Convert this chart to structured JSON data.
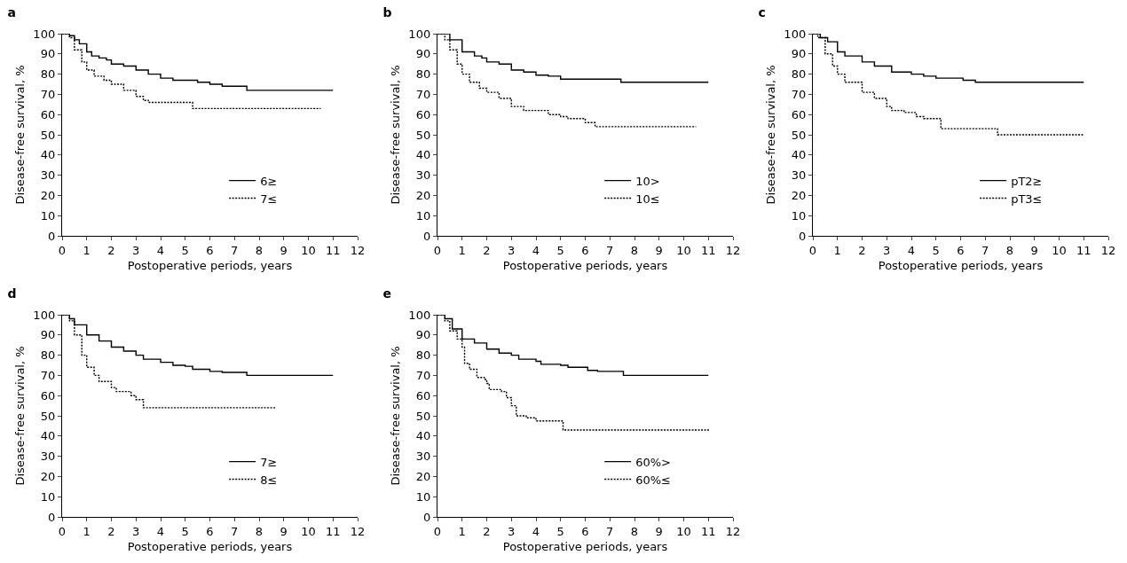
{
  "chart_data": [
    {
      "type": "step",
      "title": "a",
      "xlabel": "Postoperative periods, years",
      "ylabel": "Disease-free survival, %",
      "xlim": [
        0,
        12
      ],
      "ylim": [
        0,
        100
      ],
      "xticks": [
        0,
        1,
        2,
        3,
        4,
        5,
        6,
        7,
        8,
        9,
        10,
        11,
        12
      ],
      "yticks": [
        0,
        10,
        20,
        30,
        40,
        50,
        60,
        70,
        80,
        90,
        100
      ],
      "grid": false,
      "legend": "bottom right",
      "series": [
        {
          "name": "6≥",
          "color": "#000000",
          "line_style": "solid",
          "x": [
            0,
            0.3,
            0.5,
            0.7,
            1,
            1.2,
            1.5,
            1.8,
            2,
            2.5,
            3,
            3.5,
            4,
            4.5,
            5.5,
            6,
            6.5,
            7.5,
            11
          ],
          "values": [
            100,
            99,
            97,
            95,
            91,
            89,
            88,
            87,
            85,
            84,
            82,
            80,
            78,
            77,
            76,
            75,
            74,
            72,
            72
          ]
        },
        {
          "name": "7≤",
          "color": "#000000",
          "line_style": "dotted",
          "x": [
            0,
            0.3,
            0.5,
            0.8,
            1,
            1.3,
            1.7,
            2,
            2.5,
            3,
            3.3,
            3.5,
            5.3,
            10.5
          ],
          "values": [
            100,
            98,
            92,
            86,
            82,
            79,
            77,
            75,
            72,
            69,
            67,
            66,
            63,
            63
          ]
        }
      ]
    },
    {
      "type": "step",
      "title": "b",
      "xlabel": "Postoperative periods, years",
      "ylabel": "Disease-free survival, %",
      "xlim": [
        0,
        12
      ],
      "ylim": [
        0,
        100
      ],
      "xticks": [
        0,
        1,
        2,
        3,
        4,
        5,
        6,
        7,
        8,
        9,
        10,
        11,
        12
      ],
      "yticks": [
        0,
        10,
        20,
        30,
        40,
        50,
        60,
        70,
        80,
        90,
        100
      ],
      "grid": false,
      "legend": "bottom right",
      "series": [
        {
          "name": "10>",
          "color": "#000000",
          "line_style": "solid",
          "x": [
            0,
            0.5,
            1,
            1.5,
            1.8,
            2,
            2.5,
            3,
            3.5,
            4,
            4.5,
            5,
            7.45,
            11
          ],
          "values": [
            100,
            97,
            91,
            89,
            88,
            86,
            85,
            82,
            81,
            79.5,
            79,
            77.5,
            76,
            76
          ]
        },
        {
          "name": "10≤",
          "color": "#000000",
          "line_style": "dotted",
          "x": [
            0,
            0.3,
            0.5,
            0.8,
            1,
            1.3,
            1.7,
            2,
            2.5,
            3,
            3.5,
            4.5,
            5,
            5.3,
            6,
            6.4,
            10.5
          ],
          "values": [
            100,
            97,
            92,
            85,
            80,
            76,
            73,
            71,
            68,
            64,
            62,
            60,
            59,
            58,
            56,
            54,
            54
          ]
        }
      ]
    },
    {
      "type": "step",
      "title": "c",
      "xlabel": "Postoperative periods, years",
      "ylabel": "Disease-free survival, %",
      "xlim": [
        0,
        12
      ],
      "ylim": [
        0,
        100
      ],
      "xticks": [
        0,
        1,
        2,
        3,
        4,
        5,
        6,
        7,
        8,
        9,
        10,
        11,
        12
      ],
      "yticks": [
        0,
        10,
        20,
        30,
        40,
        50,
        60,
        70,
        80,
        90,
        100
      ],
      "grid": false,
      "legend": "bottom right",
      "series": [
        {
          "name": "pT2≥",
          "color": "#000000",
          "line_style": "solid",
          "x": [
            0,
            0.3,
            0.6,
            1,
            1.3,
            2,
            2.5,
            3.2,
            4,
            4.5,
            5,
            6.1,
            6.6,
            11
          ],
          "values": [
            100,
            98,
            96,
            91,
            89,
            86,
            84,
            81,
            80,
            79,
            78,
            77,
            76,
            76
          ]
        },
        {
          "name": "pT3≤",
          "color": "#000000",
          "line_style": "dotted",
          "x": [
            0,
            0.2,
            0.5,
            0.8,
            1,
            1.3,
            2,
            2.5,
            3,
            3.2,
            3.7,
            4.2,
            4.5,
            5.2,
            7.5,
            11
          ],
          "values": [
            100,
            98,
            90,
            84,
            80,
            76,
            71,
            68,
            64,
            62,
            61,
            59,
            58,
            53,
            50,
            50
          ]
        }
      ]
    },
    {
      "type": "step",
      "title": "d",
      "xlabel": "Postoperative periods, years",
      "ylabel": "Disease-free survival, %",
      "xlim": [
        0,
        12
      ],
      "ylim": [
        0,
        100
      ],
      "xticks": [
        0,
        1,
        2,
        3,
        4,
        5,
        6,
        7,
        8,
        9,
        10,
        11,
        12
      ],
      "yticks": [
        0,
        10,
        20,
        30,
        40,
        50,
        60,
        70,
        80,
        90,
        100
      ],
      "grid": false,
      "legend": "bottom right",
      "series": [
        {
          "name": "7≥",
          "color": "#000000",
          "line_style": "solid",
          "x": [
            0,
            0.3,
            0.5,
            1,
            1.5,
            2,
            2.5,
            3,
            3.3,
            4,
            4.5,
            5,
            5.3,
            6,
            6.5,
            7.5,
            11
          ],
          "values": [
            100,
            98,
            95,
            90,
            87,
            84,
            82,
            80,
            78,
            76.5,
            75,
            74.5,
            73,
            72,
            71.5,
            70,
            70
          ]
        },
        {
          "name": "8≤",
          "color": "#000000",
          "line_style": "dotted",
          "x": [
            0,
            0.3,
            0.5,
            0.8,
            1,
            1.3,
            1.5,
            2,
            2.2,
            2.8,
            3,
            3.3,
            8.7
          ],
          "values": [
            100,
            97,
            90,
            80,
            74,
            70,
            67,
            64,
            62,
            60,
            58,
            54,
            54
          ]
        }
      ]
    },
    {
      "type": "step",
      "title": "e",
      "xlabel": "Postoperative periods, years",
      "ylabel": "Disease-free survival, %",
      "xlim": [
        0,
        12
      ],
      "ylim": [
        0,
        100
      ],
      "xticks": [
        0,
        1,
        2,
        3,
        4,
        5,
        6,
        7,
        8,
        9,
        10,
        11,
        12
      ],
      "yticks": [
        0,
        10,
        20,
        30,
        40,
        50,
        60,
        70,
        80,
        90,
        100
      ],
      "grid": false,
      "legend": "bottom right",
      "series": [
        {
          "name": "60%>",
          "color": "#000000",
          "line_style": "solid",
          "x": [
            0,
            0.3,
            0.6,
            1,
            1.5,
            2,
            2.5,
            3,
            3.3,
            4,
            4.2,
            5,
            5.3,
            6.1,
            6.5,
            7.55,
            11
          ],
          "values": [
            100,
            98,
            93,
            88,
            86,
            83,
            81,
            80,
            78,
            77,
            75.5,
            75,
            74,
            72.5,
            72,
            70,
            70
          ]
        },
        {
          "name": "60%≤",
          "color": "#000000",
          "line_style": "dotted",
          "x": [
            0,
            0.3,
            0.5,
            0.8,
            1,
            1.1,
            1.3,
            1.6,
            1.9,
            2,
            2.1,
            2.6,
            2.8,
            3,
            3.2,
            3.6,
            4,
            5.1,
            11
          ],
          "values": [
            100,
            97,
            92,
            88,
            84,
            76,
            73,
            69,
            68,
            66,
            63,
            62,
            59,
            55,
            50,
            49,
            47.5,
            43,
            42.5
          ]
        }
      ]
    }
  ]
}
